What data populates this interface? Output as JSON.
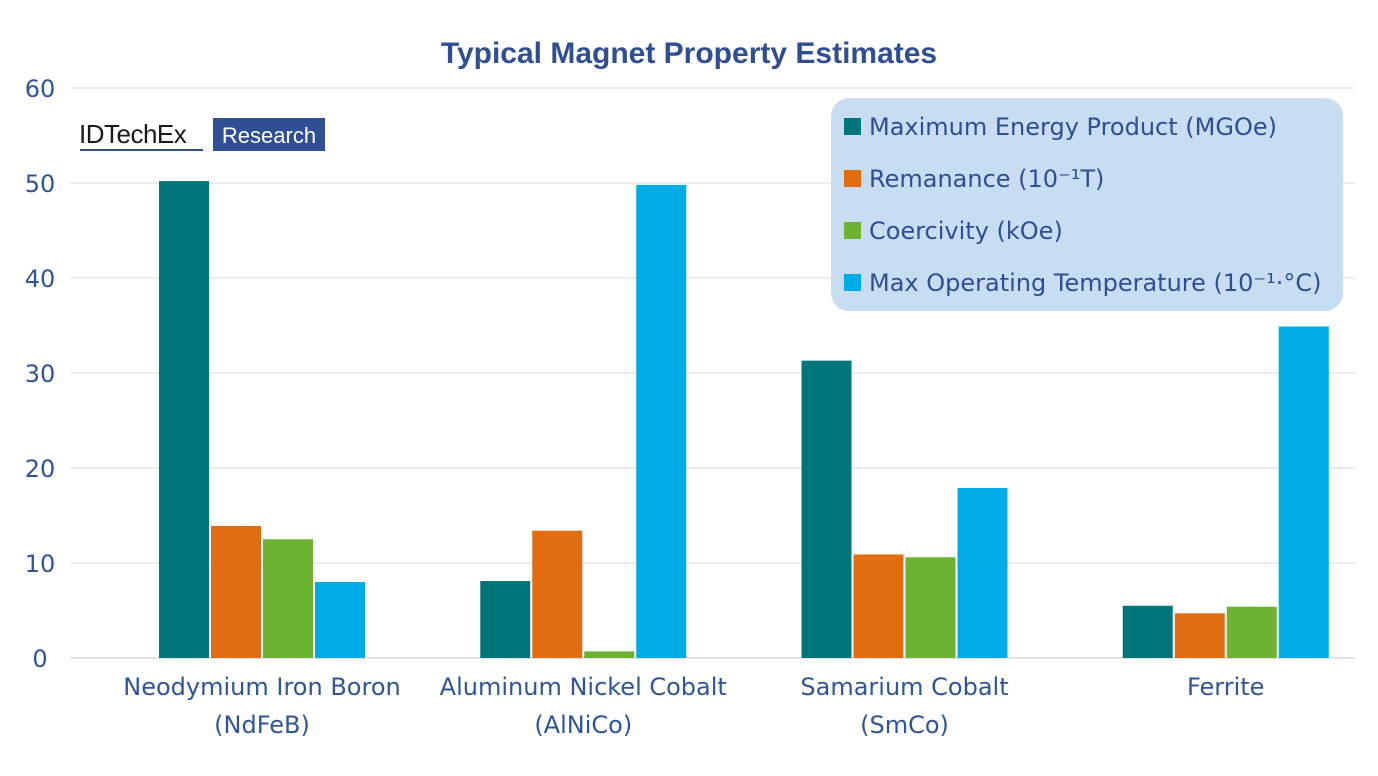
{
  "logo": {
    "brand": "IDTechEx",
    "badge": "Research"
  },
  "colors": {
    "brand_blue": "#2f4e93",
    "legend_bg": "#c9ddf2",
    "grid": "#d9d9d9"
  },
  "chart_data": {
    "type": "bar",
    "title": "Typical Magnet Property Estimates",
    "xlabel": "",
    "ylabel": "",
    "ylim": [
      0,
      60
    ],
    "yticks": [
      0,
      10,
      20,
      30,
      40,
      50,
      60
    ],
    "grid": true,
    "legend_position": "top-right",
    "categories": [
      [
        "Neodymium Iron Boron",
        "(NdFeB)"
      ],
      [
        "Aluminum Nickel Cobalt",
        "(AlNiCo)"
      ],
      [
        "Samarium Cobalt",
        "(SmCo)"
      ],
      [
        "Ferrite"
      ]
    ],
    "series": [
      {
        "name": "Maximum Energy Product (MGOe)",
        "color": "#00767a",
        "values": [
          50.2,
          8.1,
          31.3,
          5.5
        ]
      },
      {
        "name": "Remanance (10⁻¹T)",
        "color": "#e26c12",
        "values": [
          13.9,
          13.4,
          10.9,
          4.7
        ]
      },
      {
        "name": "Coercivity (kOe)",
        "color": "#6db333",
        "values": [
          12.5,
          0.7,
          10.6,
          5.4
        ]
      },
      {
        "name": "Max Operating Temperature (10⁻¹·°C)",
        "color": "#00ace6",
        "values": [
          8.0,
          49.8,
          17.9,
          34.9
        ]
      }
    ]
  }
}
